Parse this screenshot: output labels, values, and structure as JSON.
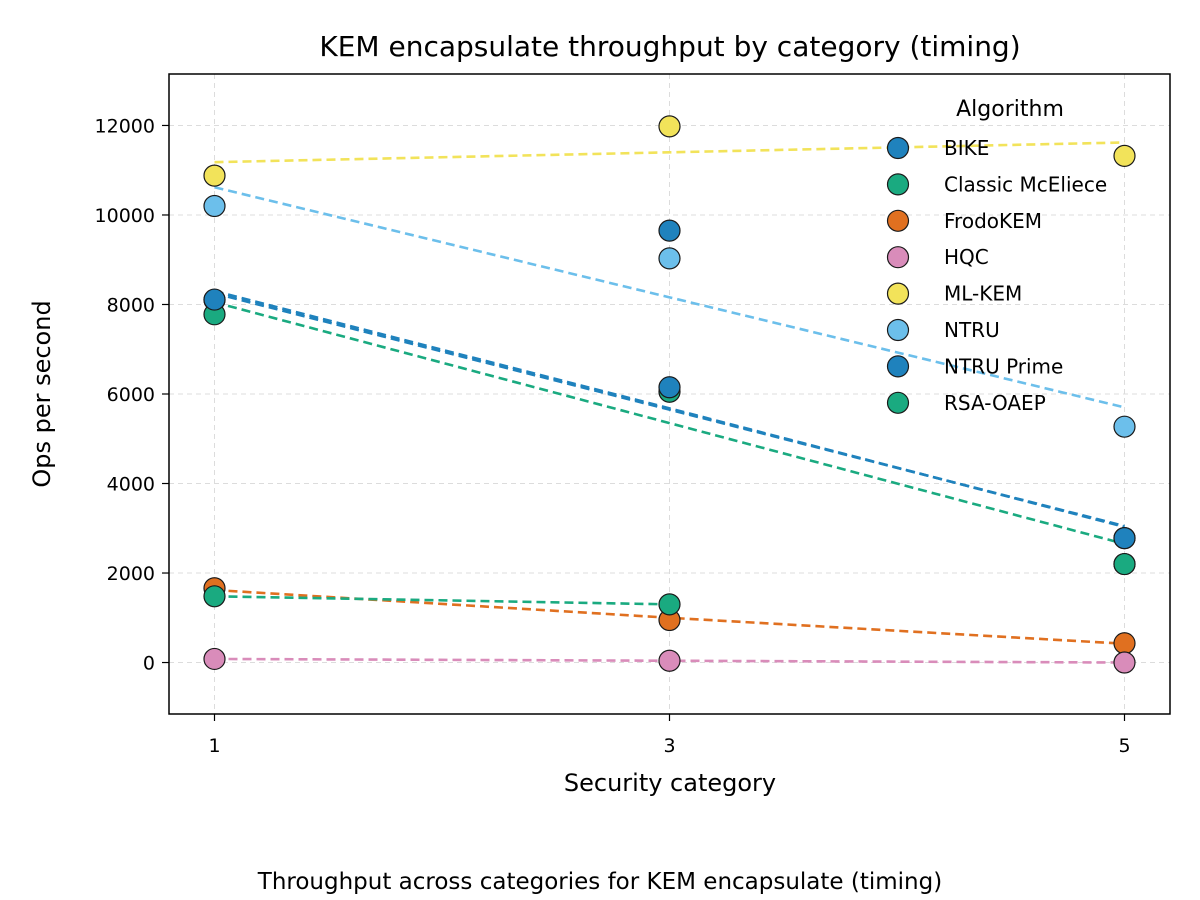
{
  "caption": "Throughput across categories for KEM encapsulate (timing)",
  "chart_data": {
    "type": "scatter",
    "title": "KEM encapsulate throughput by category (timing)",
    "xlabel": "Security category",
    "ylabel": "Ops per second",
    "x": [
      1,
      3,
      5
    ],
    "x_ticks": [
      "1",
      "3",
      "5"
    ],
    "xlim": [
      0.8,
      5.2
    ],
    "ylim": [
      -1150,
      13150
    ],
    "y_ticks": [
      0,
      2000,
      4000,
      6000,
      8000,
      10000,
      12000
    ],
    "y_tick_labels": [
      "0",
      "2000",
      "4000",
      "6000",
      "8000",
      "10000",
      "12000"
    ],
    "grid": true,
    "trend_lines": "dashed linear fit per series",
    "legend": {
      "title": "Algorithm",
      "placement": "top-right"
    },
    "series": [
      {
        "name": "BIKE",
        "color": "#1f82bd",
        "values": [
          8100,
          9650,
          2780
        ],
        "trend": [
          8250,
          5650,
          3050
        ]
      },
      {
        "name": "Classic McEliece",
        "color": "#1aaa80",
        "values": [
          7780,
          6050,
          2200
        ],
        "trend": [
          8050,
          5350,
          2650
        ]
      },
      {
        "name": "FrodoKEM",
        "color": "#e07020",
        "values": [
          1660,
          950,
          430
        ],
        "trend": [
          1620,
          1000,
          420
        ]
      },
      {
        "name": "HQC",
        "color": "#d98cba",
        "values": [
          80,
          40,
          0
        ],
        "trend": [
          80,
          40,
          0
        ]
      },
      {
        "name": "ML-KEM",
        "color": "#f2e35a",
        "values": [
          10880,
          11980,
          11320
        ],
        "trend": [
          11180,
          11400,
          11620
        ]
      },
      {
        "name": "NTRU",
        "color": "#6cbfeb",
        "values": [
          10200,
          9030,
          5270
        ],
        "trend": [
          10620,
          8160,
          5700
        ]
      },
      {
        "name": "NTRU Prime",
        "color": "#1f82bd",
        "values": [
          8110,
          6150,
          2780
        ],
        "trend": [
          8300,
          5680,
          3030
        ]
      },
      {
        "name": "RSA-OAEP",
        "color": "#1aaa80",
        "values": [
          1480,
          1300,
          2200
        ],
        "trend": [
          1480,
          1300,
          null
        ]
      }
    ]
  }
}
